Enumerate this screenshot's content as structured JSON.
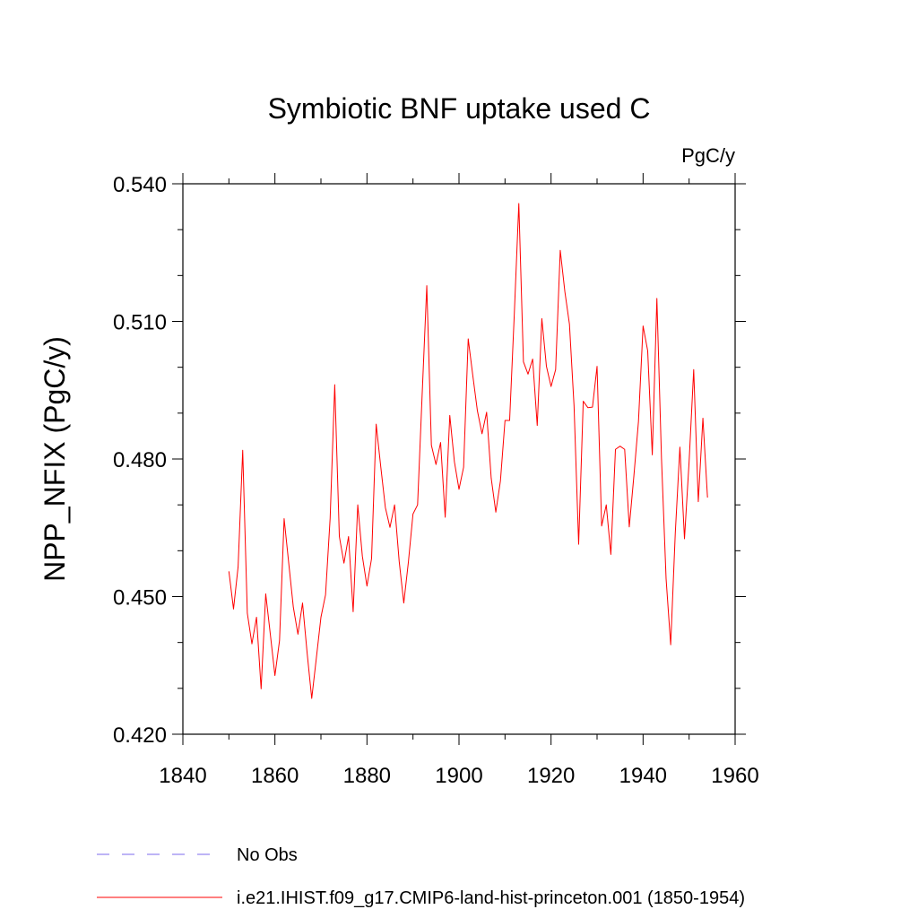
{
  "chart_data": {
    "type": "line",
    "title": "Symbiotic BNF uptake used C",
    "units_label": "PgC/y",
    "xlabel": "",
    "ylabel": "NPP_NFIX  (PgC/y)",
    "xlim": [
      1840,
      1960
    ],
    "ylim": [
      0.42,
      0.54
    ],
    "x_ticks": [
      1840,
      1860,
      1880,
      1900,
      1920,
      1940,
      1960
    ],
    "x_tick_labels": [
      "1840",
      "1860",
      "1880",
      "1900",
      "1920",
      "1940",
      "1960"
    ],
    "y_ticks": [
      0.42,
      0.45,
      0.48,
      0.51,
      0.54
    ],
    "y_tick_labels": [
      "0.420",
      "0.450",
      "0.480",
      "0.510",
      "0.540"
    ],
    "grid": false,
    "legend_position": "bottom",
    "legend": [
      {
        "label": "No Obs",
        "color": "#7b68ee",
        "style": "dashed"
      },
      {
        "label": "i.e21.IHIST.f09_g17.CMIP6-land-hist-princeton.001 (1850-1954)",
        "color": "#ff0000",
        "style": "solid"
      }
    ],
    "series": [
      {
        "name": "i.e21.IHIST.f09_g17.CMIP6-land-hist-princeton.001 (1850-1954)",
        "color": "#ff0000",
        "x_start": 1850,
        "values": [
          0.4555,
          0.4473,
          0.4565,
          0.4819,
          0.4464,
          0.4397,
          0.4455,
          0.4299,
          0.4506,
          0.4418,
          0.4328,
          0.4404,
          0.467,
          0.4573,
          0.4477,
          0.4418,
          0.4486,
          0.4377,
          0.4278,
          0.4366,
          0.4455,
          0.4504,
          0.4671,
          0.4962,
          0.4631,
          0.4573,
          0.4631,
          0.4467,
          0.47,
          0.4588,
          0.4523,
          0.4583,
          0.4876,
          0.4783,
          0.4694,
          0.4651,
          0.47,
          0.4577,
          0.4486,
          0.4575,
          0.468,
          0.47,
          0.4942,
          0.5178,
          0.483,
          0.4788,
          0.4836,
          0.4673,
          0.4895,
          0.4794,
          0.4734,
          0.4782,
          0.5062,
          0.4982,
          0.4905,
          0.4855,
          0.4902,
          0.4758,
          0.4684,
          0.4752,
          0.4884,
          0.4884,
          0.5112,
          0.5357,
          0.5012,
          0.4985,
          0.5018,
          0.4873,
          0.5106,
          0.5002,
          0.4958,
          0.4995,
          0.5255,
          0.5165,
          0.5094,
          0.4916,
          0.4614,
          0.4926,
          0.4912,
          0.4913,
          0.5002,
          0.4654,
          0.47,
          0.4592,
          0.4821,
          0.4828,
          0.4821,
          0.4652,
          0.4763,
          0.4882,
          0.509,
          0.5036,
          0.4809,
          0.515,
          0.4801,
          0.4539,
          0.4395,
          0.4639,
          0.4826,
          0.4626,
          0.4794,
          0.4995,
          0.4707,
          0.4889,
          0.4716
        ]
      }
    ]
  }
}
